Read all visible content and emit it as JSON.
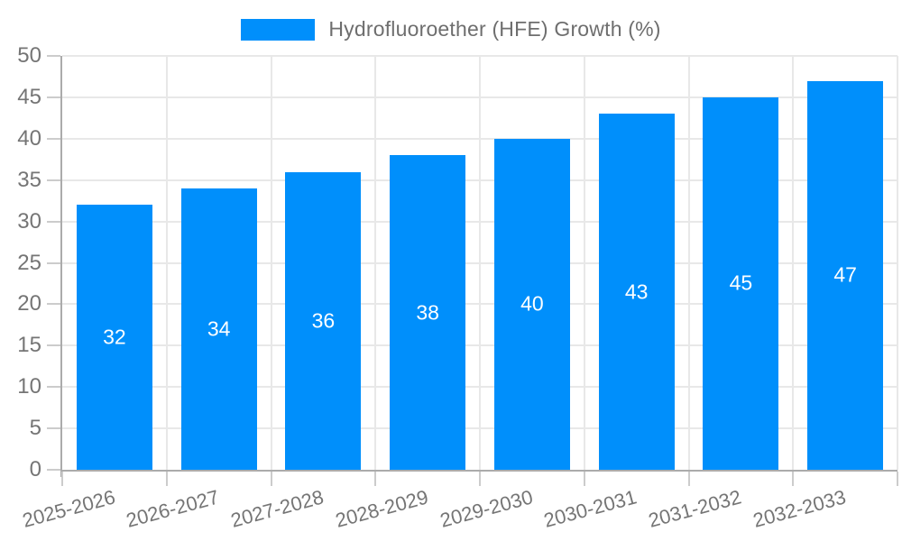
{
  "legend": {
    "label": "Hydrofluoroether (HFE) Growth (%)"
  },
  "chart_data": {
    "type": "bar",
    "title": "",
    "xlabel": "",
    "ylabel": "",
    "categories": [
      "2025-2026",
      "2026-2027",
      "2027-2028",
      "2028-2029",
      "2029-2030",
      "2030-2031",
      "2031-2032",
      "2032-2033"
    ],
    "series": [
      {
        "name": "Hydrofluoroether (HFE) Growth (%)",
        "values": [
          32,
          34,
          36,
          38,
          40,
          43,
          45,
          47
        ]
      }
    ],
    "ylim": [
      0,
      50
    ],
    "ytick_step": 5,
    "ytick_labels": [
      "0",
      "5",
      "10",
      "15",
      "20",
      "25",
      "30",
      "35",
      "40",
      "45",
      "50"
    ],
    "grid": true,
    "legend_position": "top",
    "value_labels_position": "inside-center"
  },
  "colors": {
    "bar": "#008FFB",
    "grid": "#e8e8e8",
    "axis": "#ababab",
    "tick": "#cccccc",
    "axis_text": "#757575",
    "value_text": "#ffffff"
  }
}
